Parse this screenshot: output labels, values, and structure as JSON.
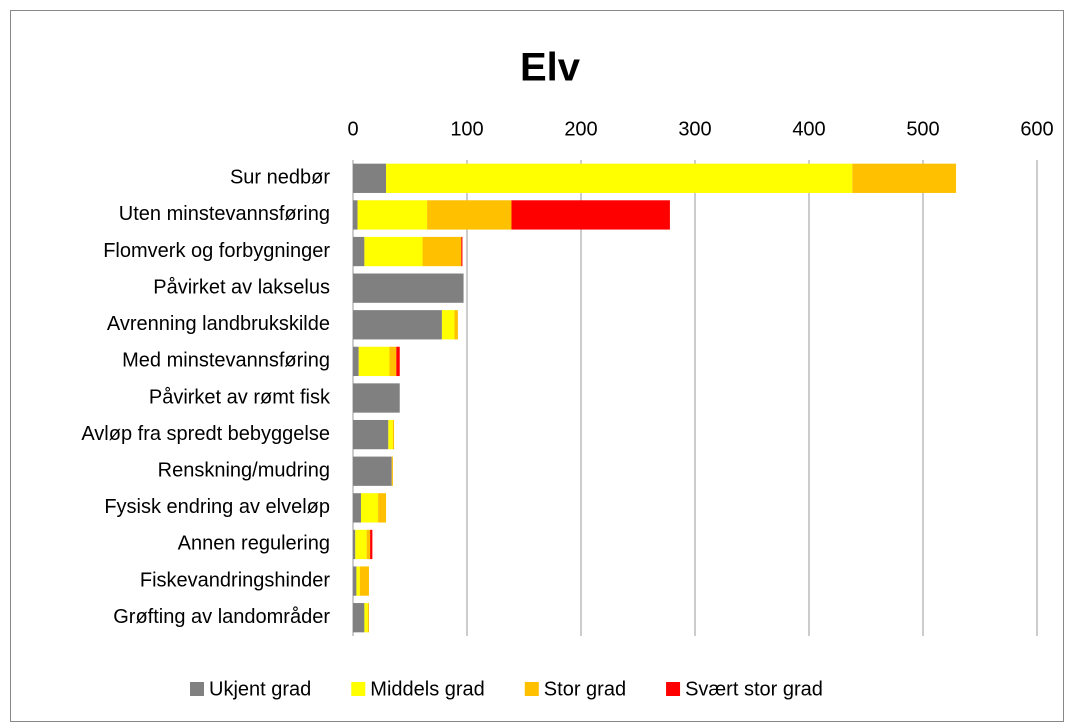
{
  "chart_data": {
    "type": "stacked_barh",
    "title": "Elv",
    "categories": [
      "Sur nedbør",
      "Uten minstevannsføring",
      "Flomverk og forbygninger",
      "Påvirket av lakselus",
      "Avrenning landbrukskilde",
      "Med minstevannsføring",
      "Påvirket av rømt fisk",
      "Avløp fra spredt bebyggelse",
      "Renskning/mudring",
      "Fysisk endring av elveløp",
      "Annen regulering",
      "Fiskevandringshinder",
      "Grøfting av landområder"
    ],
    "series": [
      {
        "name": "Ukjent grad",
        "color": "#808080",
        "values": [
          29,
          4,
          10,
          97,
          78,
          5,
          41,
          31,
          34,
          7,
          2,
          3,
          10
        ]
      },
      {
        "name": "Middels grad",
        "color": "#ffff00",
        "values": [
          409,
          61,
          51,
          0,
          11,
          27,
          0,
          4,
          0,
          15,
          10,
          3,
          3
        ]
      },
      {
        "name": "Stor grad",
        "color": "#ffc000",
        "values": [
          91,
          74,
          34,
          0,
          3,
          6,
          0,
          1,
          1,
          7,
          3,
          8,
          1
        ]
      },
      {
        "name": "Svært stor grad",
        "color": "#ff0000",
        "values": [
          0,
          139,
          1,
          0,
          0,
          3,
          0,
          0,
          0,
          0,
          2,
          0,
          0
        ]
      }
    ],
    "xlim": [
      0,
      600
    ],
    "xticks": [
      0,
      100,
      200,
      300,
      400,
      500,
      600
    ],
    "grid": true,
    "legend": "bottom"
  }
}
